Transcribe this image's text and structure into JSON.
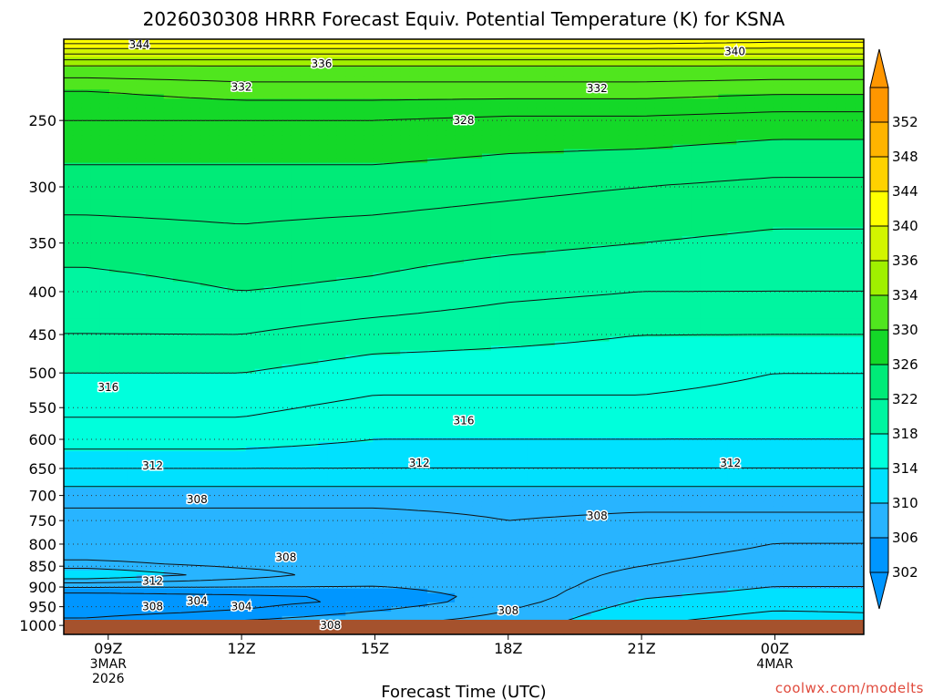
{
  "title": "2026030308 HRRR Forecast Equiv. Potential Temperature (K) for KSNA",
  "credit": "coolwx.com/modelts",
  "chart_data": {
    "type": "heatmap",
    "title": "2026030308 HRRR Forecast Equiv. Potential Temperature (K) for KSNA",
    "xlabel": "Forecast Time (UTC)",
    "ylabel": "",
    "x_ticks": [
      {
        "hour": 9,
        "lines": [
          "09Z",
          "3MAR",
          "2026"
        ]
      },
      {
        "hour": 12,
        "lines": [
          "12Z"
        ]
      },
      {
        "hour": 15,
        "lines": [
          "15Z"
        ]
      },
      {
        "hour": 18,
        "lines": [
          "18Z"
        ]
      },
      {
        "hour": 21,
        "lines": [
          "21Z"
        ]
      },
      {
        "hour": 24,
        "lines": [
          "00Z",
          "4MAR"
        ]
      }
    ],
    "xlim_hours": [
      8,
      26
    ],
    "y_axis": "pressure (hPa), log scale, inverted",
    "y_ticks": [
      250,
      300,
      350,
      400,
      450,
      500,
      550,
      600,
      650,
      700,
      750,
      800,
      850,
      900,
      950,
      1000
    ],
    "ylim": [
      1025,
      200
    ],
    "grid": "dotted horizontal lines at pressure ticks",
    "contour_interval_K": 2,
    "colorbar": {
      "levels": [
        302,
        306,
        310,
        314,
        318,
        322,
        326,
        330,
        334,
        336,
        340,
        344,
        348,
        352
      ],
      "colors": [
        "#0096ff",
        "#28b4ff",
        "#00e1ff",
        "#00ffdc",
        "#00f5a0",
        "#00eb78",
        "#14d828",
        "#50e61e",
        "#a0f000",
        "#d2f500",
        "#ffff00",
        "#ffd200",
        "#ffb400",
        "#ff9600"
      ],
      "extend_low_color": "#0096ff",
      "extend_high_color": "#ff9600"
    },
    "ground_color": "#a5522d",
    "theta_e_profiles": [
      {
        "hour": 8.5,
        "points": [
          [
            1000,
            305
          ],
          [
            960,
            303
          ],
          [
            930,
            302
          ],
          [
            900,
            306
          ],
          [
            870,
            312
          ],
          [
            840,
            308
          ],
          [
            800,
            307
          ],
          [
            750,
            307
          ],
          [
            700,
            309
          ],
          [
            650,
            312
          ],
          [
            600,
            315
          ],
          [
            500,
            318
          ],
          [
            450,
            320
          ],
          [
            400,
            321
          ],
          [
            350,
            323
          ],
          [
            300,
            325
          ],
          [
            250,
            328
          ],
          [
            230,
            330
          ],
          [
            215,
            334
          ],
          [
            205,
            340
          ],
          [
            200,
            344
          ]
        ]
      },
      {
        "hour": 12,
        "points": [
          [
            1000,
            307
          ],
          [
            960,
            304
          ],
          [
            930,
            303
          ],
          [
            900,
            306
          ],
          [
            870,
            309
          ],
          [
            840,
            307
          ],
          [
            800,
            307
          ],
          [
            750,
            307
          ],
          [
            700,
            309
          ],
          [
            650,
            312
          ],
          [
            600,
            315
          ],
          [
            500,
            318
          ],
          [
            450,
            320
          ],
          [
            400,
            322
          ],
          [
            350,
            323.5
          ],
          [
            300,
            325
          ],
          [
            250,
            328
          ],
          [
            230,
            331
          ],
          [
            215,
            334
          ],
          [
            205,
            340
          ],
          [
            200,
            344
          ]
        ]
      },
      {
        "hour": 15,
        "points": [
          [
            1000,
            308
          ],
          [
            960,
            306
          ],
          [
            930,
            304
          ],
          [
            900,
            306
          ],
          [
            850,
            307
          ],
          [
            800,
            307
          ],
          [
            750,
            307
          ],
          [
            700,
            309
          ],
          [
            650,
            312
          ],
          [
            600,
            314
          ],
          [
            500,
            317
          ],
          [
            450,
            319
          ],
          [
            400,
            321.5
          ],
          [
            350,
            323
          ],
          [
            300,
            325
          ],
          [
            250,
            328
          ],
          [
            230,
            331
          ],
          [
            215,
            334
          ],
          [
            205,
            340
          ],
          [
            200,
            344
          ]
        ]
      },
      {
        "hour": 18,
        "points": [
          [
            1000,
            309
          ],
          [
            960,
            308
          ],
          [
            930,
            307
          ],
          [
            900,
            307
          ],
          [
            850,
            307
          ],
          [
            800,
            307
          ],
          [
            750,
            308
          ],
          [
            700,
            309
          ],
          [
            650,
            312
          ],
          [
            600,
            314
          ],
          [
            500,
            317
          ],
          [
            450,
            318.5
          ],
          [
            400,
            320.5
          ],
          [
            350,
            322.5
          ],
          [
            300,
            324.5
          ],
          [
            250,
            327.5
          ],
          [
            230,
            331
          ],
          [
            215,
            334
          ],
          [
            205,
            340
          ],
          [
            200,
            344
          ]
        ]
      },
      {
        "hour": 21,
        "points": [
          [
            1000,
            312
          ],
          [
            960,
            311
          ],
          [
            930,
            310
          ],
          [
            900,
            309
          ],
          [
            850,
            308
          ],
          [
            800,
            307
          ],
          [
            750,
            307.5
          ],
          [
            700,
            309
          ],
          [
            650,
            312
          ],
          [
            600,
            314
          ],
          [
            500,
            317
          ],
          [
            450,
            318
          ],
          [
            400,
            320
          ],
          [
            350,
            322
          ],
          [
            300,
            324
          ],
          [
            250,
            327.5
          ],
          [
            230,
            331
          ],
          [
            215,
            334
          ],
          [
            205,
            340
          ],
          [
            200,
            344
          ]
        ]
      },
      {
        "hour": 24,
        "points": [
          [
            1000,
            313
          ],
          [
            960,
            312
          ],
          [
            930,
            311
          ],
          [
            900,
            310
          ],
          [
            850,
            309
          ],
          [
            800,
            308
          ],
          [
            750,
            307.5
          ],
          [
            700,
            309
          ],
          [
            650,
            312
          ],
          [
            600,
            314
          ],
          [
            500,
            316
          ],
          [
            450,
            318
          ],
          [
            400,
            320
          ],
          [
            350,
            321.5
          ],
          [
            300,
            323.5
          ],
          [
            250,
            327
          ],
          [
            230,
            330.5
          ],
          [
            215,
            334
          ],
          [
            205,
            340
          ],
          [
            200,
            343
          ]
        ]
      },
      {
        "hour": 26,
        "points": [
          [
            1000,
            312
          ],
          [
            960,
            312
          ],
          [
            930,
            311
          ],
          [
            900,
            310
          ],
          [
            850,
            309
          ],
          [
            800,
            308
          ],
          [
            750,
            307.5
          ],
          [
            700,
            309
          ],
          [
            650,
            312
          ],
          [
            600,
            314
          ],
          [
            500,
            316
          ],
          [
            450,
            318
          ],
          [
            400,
            320
          ],
          [
            350,
            321.5
          ],
          [
            300,
            323.5
          ],
          [
            250,
            327
          ],
          [
            230,
            330.5
          ],
          [
            215,
            334
          ],
          [
            205,
            340
          ],
          [
            200,
            343
          ]
        ]
      }
    ],
    "contour_labels": [
      {
        "text": "344",
        "hour": 9.7,
        "p": 203
      },
      {
        "text": "340",
        "hour": 23.1,
        "p": 207
      },
      {
        "text": "336",
        "hour": 13.8,
        "p": 214
      },
      {
        "text": "332",
        "hour": 12.0,
        "p": 228
      },
      {
        "text": "332",
        "hour": 20.0,
        "p": 229
      },
      {
        "text": "328",
        "hour": 17.0,
        "p": 250
      },
      {
        "text": "316",
        "hour": 9.0,
        "p": 520
      },
      {
        "text": "316",
        "hour": 17.0,
        "p": 570
      },
      {
        "text": "312",
        "hour": 10.0,
        "p": 645
      },
      {
        "text": "312",
        "hour": 16.0,
        "p": 640
      },
      {
        "text": "312",
        "hour": 23.0,
        "p": 640
      },
      {
        "text": "308",
        "hour": 11.0,
        "p": 708
      },
      {
        "text": "308",
        "hour": 20.0,
        "p": 740
      },
      {
        "text": "308",
        "hour": 13.0,
        "p": 830
      },
      {
        "text": "312",
        "hour": 10.0,
        "p": 885
      },
      {
        "text": "304",
        "hour": 11.0,
        "p": 935
      },
      {
        "text": "308",
        "hour": 10.0,
        "p": 950
      },
      {
        "text": "304",
        "hour": 12.0,
        "p": 950
      },
      {
        "text": "308",
        "hour": 18.0,
        "p": 960
      },
      {
        "text": "308",
        "hour": 14.0,
        "p": 1000
      }
    ]
  }
}
